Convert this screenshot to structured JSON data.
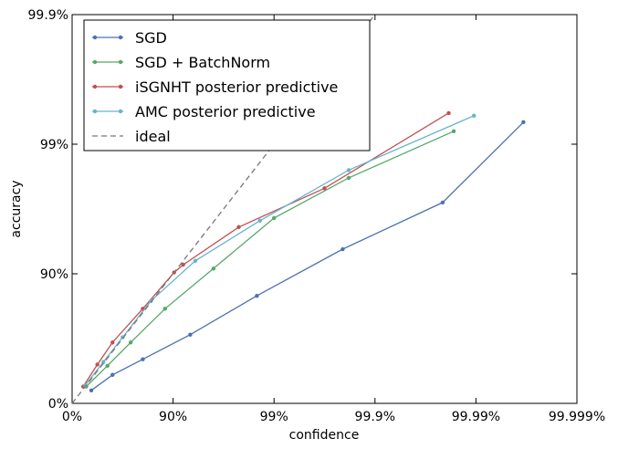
{
  "chart_data": {
    "type": "line",
    "xlabel": "confidence",
    "ylabel": "accuracy",
    "x_ticks": [
      {
        "value": 0,
        "label": "0%"
      },
      {
        "value": 1,
        "label": "90%"
      },
      {
        "value": 2,
        "label": "99%"
      },
      {
        "value": 3,
        "label": "99.9%"
      },
      {
        "value": 4,
        "label": "99.99%"
      },
      {
        "value": 5,
        "label": "99.999%"
      }
    ],
    "y_ticks": [
      {
        "value": 0,
        "label": "0%"
      },
      {
        "value": 1,
        "label": "90%"
      },
      {
        "value": 2,
        "label": "99%"
      },
      {
        "value": 3,
        "label": "99.9%"
      }
    ],
    "xlim": [
      0,
      5
    ],
    "ylim": [
      0,
      3
    ],
    "scale": "-log10(1 - p)",
    "legend_position": "top-left",
    "grid": false,
    "series": [
      {
        "name": "SGD",
        "color": "#4c72b0",
        "points": [
          [
            0.19,
            0.1
          ],
          [
            0.4,
            0.22
          ],
          [
            0.7,
            0.34
          ],
          [
            1.17,
            0.53
          ],
          [
            1.83,
            0.83
          ],
          [
            2.68,
            1.19
          ],
          [
            3.67,
            1.55
          ],
          [
            4.47,
            2.17
          ]
        ]
      },
      {
        "name": "SGD + BatchNorm",
        "color": "#55a868",
        "points": [
          [
            0.14,
            0.13
          ],
          [
            0.35,
            0.29
          ],
          [
            0.58,
            0.47
          ],
          [
            0.92,
            0.73
          ],
          [
            1.4,
            1.04
          ],
          [
            2.0,
            1.43
          ],
          [
            2.74,
            1.74
          ],
          [
            3.78,
            2.1
          ]
        ]
      },
      {
        "name": "iSGNHT posterior predictive",
        "color": "#c44e52",
        "points": [
          [
            0.11,
            0.13
          ],
          [
            0.25,
            0.3
          ],
          [
            0.4,
            0.47
          ],
          [
            0.7,
            0.73
          ],
          [
            1.01,
            1.01
          ],
          [
            1.1,
            1.07
          ],
          [
            1.65,
            1.36
          ],
          [
            2.5,
            1.66
          ],
          [
            3.73,
            2.24
          ]
        ]
      },
      {
        "name": "AMC posterior predictive",
        "color": "#64b5cd",
        "points": [
          [
            0.13,
            0.14
          ],
          [
            0.31,
            0.32
          ],
          [
            0.5,
            0.51
          ],
          [
            0.78,
            0.79
          ],
          [
            1.22,
            1.1
          ],
          [
            1.86,
            1.41
          ],
          [
            2.74,
            1.8
          ],
          [
            3.98,
            2.22
          ]
        ]
      },
      {
        "name": "ideal",
        "color": "#777777",
        "dashed": true,
        "points": [
          [
            0,
            0
          ],
          [
            3,
            3
          ]
        ]
      }
    ]
  }
}
